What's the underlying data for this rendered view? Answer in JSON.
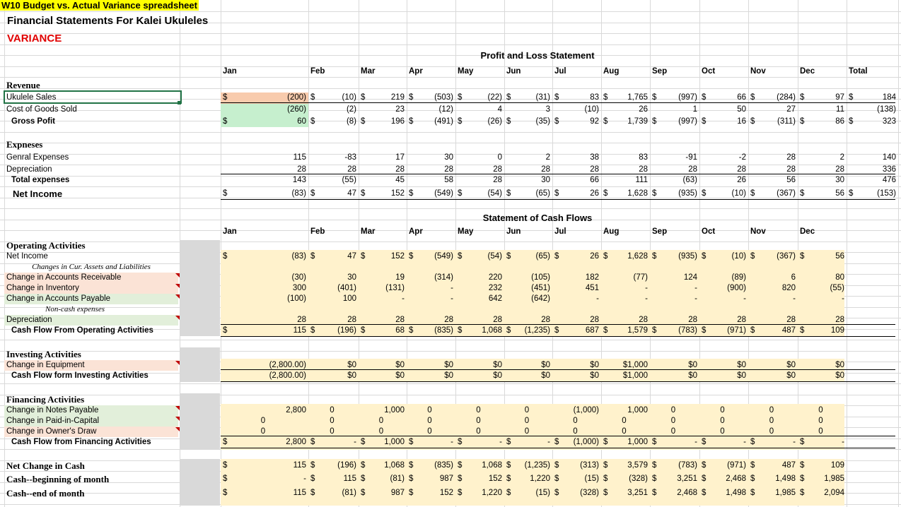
{
  "titles": {
    "sheet": "W10 Budget vs. Actual Variance spreadsheet",
    "company": "Financial Statements For Kalei Ukuleles",
    "section": "VARIANCE",
    "pl": "Profit and Loss Statement",
    "cf": "Statement of Cash Flows"
  },
  "colors": {
    "title_bg": "#ffff00",
    "variance_red": "#e00000",
    "pink": "#f8cbad",
    "pink_light": "#fbe3d6",
    "green": "#c6efce",
    "green_light": "#e2efda",
    "yellow": "#fff2cc",
    "grey": "#d9d9d9"
  },
  "months_pl": [
    "Jan",
    "Feb",
    "Mar",
    "Apr",
    "May",
    "Jun",
    "Jul",
    "Aug",
    "Sep",
    "Oct",
    "Nov",
    "Dec",
    "Total"
  ],
  "months_cf": [
    "Jan",
    "Feb",
    "Mar",
    "Apr",
    "May",
    "Jun",
    "Jul",
    "Aug",
    "Sep",
    "Oct",
    "Nov",
    "Dec"
  ],
  "pl": {
    "revenue_heading": "Revenue",
    "expenses_heading": "Expneses",
    "rows": [
      {
        "label": "Ukulele Sales",
        "y": 131,
        "vals": [
          "(200)",
          "(10)",
          "219",
          "(503)",
          "(22)",
          "(31)",
          "83",
          "1,765",
          "(997)",
          "66",
          "(284)",
          "97",
          "184"
        ],
        "dollar": true
      },
      {
        "label": "Cost of Goods Sold",
        "y": 148,
        "vals": [
          "(260)",
          "(2)",
          "23",
          "(12)",
          "4",
          "3",
          "(10)",
          "26",
          "1",
          "50",
          "27",
          "11",
          "(138)"
        ],
        "dollar": false
      },
      {
        "label": "Gross Pofit",
        "y": 165,
        "vals": [
          "60",
          "(8)",
          "196",
          "(491)",
          "(26)",
          "(35)",
          "92",
          "1,739",
          "(997)",
          "16",
          "(311)",
          "86",
          "323"
        ],
        "dollar": true
      },
      {
        "label": "Genral Expenses",
        "y": 216,
        "vals": [
          "115",
          "-83",
          "17",
          "30",
          "0",
          "2",
          "38",
          "83",
          "-91",
          "-2",
          "28",
          "2",
          "140"
        ],
        "dollar": false
      },
      {
        "label": "Depreciation",
        "y": 233,
        "vals": [
          "28",
          "28",
          "28",
          "28",
          "28",
          "28",
          "28",
          "28",
          "28",
          "28",
          "28",
          "28",
          "336"
        ],
        "dollar": false
      },
      {
        "label": "Total expenses",
        "y": 248,
        "vals": [
          "143",
          "(55)",
          "45",
          "58",
          "28",
          "30",
          "66",
          "111",
          "(63)",
          "26",
          "56",
          "30",
          "476"
        ],
        "dollar": false
      },
      {
        "label": "Net Income",
        "y": 267,
        "vals": [
          "(83)",
          "47",
          "152",
          "(549)",
          "(54)",
          "(65)",
          "26",
          "1,628",
          "(935)",
          "(10)",
          "(367)",
          "56",
          "(153)"
        ],
        "dollar": true
      }
    ]
  },
  "cf": {
    "headings": [
      "Operating Activities",
      "Investing Activities",
      "Financing Activities"
    ],
    "notes": [
      "Changes in Cur. Assets and Liabilities",
      "Non-cash expenses"
    ],
    "rows": [
      {
        "label": "Net Income",
        "y": 356,
        "vals": [
          "(83)",
          "47",
          "152",
          "(549)",
          "(54)",
          "(65)",
          "26",
          "1,628",
          "(935)",
          "(10)",
          "(367)",
          "56"
        ],
        "dollar": true
      },
      {
        "label": "Change in Accounts Receivable",
        "y": 386,
        "vals": [
          "(30)",
          "30",
          "19",
          "(314)",
          "220",
          "(105)",
          "182",
          "(77)",
          "124",
          "(89)",
          "6",
          "80"
        ],
        "dollar": false
      },
      {
        "label": "Change in Inventory",
        "y": 401,
        "vals": [
          "300",
          "(401)",
          "(131)",
          "-",
          "232",
          "(451)",
          "451",
          "-",
          "-",
          "(900)",
          "820",
          "(55)"
        ],
        "dollar": false
      },
      {
        "label": "Change in Accounts Payable",
        "y": 416,
        "vals": [
          "(100)",
          "100",
          "-",
          "-",
          "642",
          "(642)",
          "-",
          "-",
          "-",
          "-",
          "-",
          "-"
        ],
        "dollar": false
      },
      {
        "label": "Depreciation",
        "y": 446,
        "vals": [
          "28",
          "28",
          "28",
          "28",
          "28",
          "28",
          "28",
          "28",
          "28",
          "28",
          "28",
          "28"
        ],
        "dollar": false
      },
      {
        "label": "Cash Flow From Operating Activities",
        "y": 461,
        "vals": [
          "115",
          "(196)",
          "68",
          "(835)",
          "1,068",
          "(1,235)",
          "687",
          "1,579",
          "(783)",
          "(971)",
          "487",
          "109"
        ],
        "dollar": true
      },
      {
        "label": "Change in Equipment",
        "y": 510,
        "vals": [
          "(2,800.00)",
          "$0",
          "$0",
          "$0",
          "$0",
          "$0",
          "$0",
          "$1,000",
          "$0",
          "$0",
          "$0",
          "$0"
        ],
        "dollar": false
      },
      {
        "label": "Cash Flow form Investing Activities",
        "y": 525,
        "vals": [
          "(2,800.00)",
          "$0",
          "$0",
          "$0",
          "$0",
          "$0",
          "$0",
          "$1,000",
          "$0",
          "$0",
          "$0",
          "$0"
        ],
        "dollar": false
      },
      {
        "label": "Change in Notes Payable",
        "y": 574,
        "vals": [
          "2,800",
          "0",
          "1,000",
          "0",
          "0",
          "0",
          "(1,000)",
          "1,000",
          "0",
          "0",
          "0",
          "0"
        ],
        "dollar": false
      },
      {
        "label": "Change in Paid-in-Capital",
        "y": 589,
        "vals": [
          "0",
          "0",
          "0",
          "0",
          "0",
          "0",
          "0",
          "0",
          "0",
          "0",
          "0",
          "0"
        ],
        "dollar": false
      },
      {
        "label": "Change in Owner's Draw",
        "y": 604,
        "vals": [
          "0",
          "0",
          "0",
          "0",
          "0",
          "0",
          "0",
          "0",
          "0",
          "0",
          "0",
          "0"
        ],
        "dollar": false
      },
      {
        "label": "Cash Flow from Financing Activities",
        "y": 619,
        "vals": [
          "2,800",
          "-",
          "1,000",
          "-",
          "-",
          "-",
          "(1,000)",
          "1,000",
          "-",
          "-",
          "-",
          "-"
        ],
        "dollar": true
      },
      {
        "label": "Net Change in Cash",
        "y": 652,
        "vals": [
          "115",
          "(196)",
          "1,068",
          "(835)",
          "1,068",
          "(1,235)",
          "(313)",
          "3,579",
          "(783)",
          "(971)",
          "487",
          "109"
        ],
        "dollar": true
      },
      {
        "label": "Cash--beginning of month",
        "y": 671,
        "vals": [
          "-",
          "115",
          "(81)",
          "987",
          "152",
          "1,220",
          "(15)",
          "(328)",
          "3,251",
          "2,468",
          "1,498",
          "1,985"
        ],
        "dollar": true
      },
      {
        "label": "Cash--end of month",
        "y": 691,
        "vals": [
          "115",
          "(81)",
          "987",
          "152",
          "1,220",
          "(15)",
          "(328)",
          "3,251",
          "2,468",
          "1,498",
          "1,985",
          "2,094"
        ],
        "dollar": true
      }
    ]
  }
}
